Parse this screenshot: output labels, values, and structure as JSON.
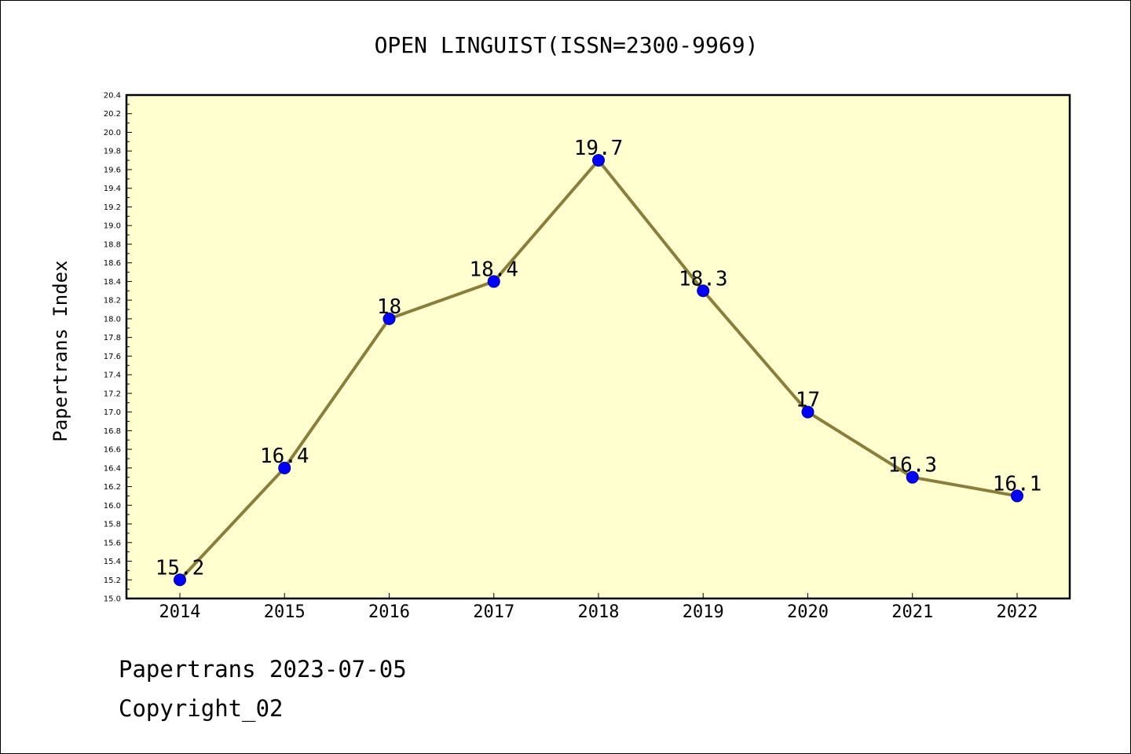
{
  "chart_data": {
    "type": "line",
    "title": "OPEN LINGUIST(ISSN=2300-9969)",
    "xlabel": "",
    "ylabel": "Papertrans Index",
    "ylim": [
      15.0,
      20.4
    ],
    "ytick_step": 0.2,
    "categories": [
      "2014",
      "2015",
      "2016",
      "2017",
      "2018",
      "2019",
      "2020",
      "2021",
      "2022"
    ],
    "series": [
      {
        "values": [
          15.2,
          16.4,
          18.0,
          18.4,
          19.7,
          18.3,
          17.0,
          16.3,
          16.1
        ],
        "data_labels": [
          "15.2",
          "16.4",
          "18",
          "18.4",
          "19.7",
          "18.3",
          "17",
          "16.3",
          "16.1"
        ]
      }
    ],
    "colors": {
      "plot_background": "#ffffd0",
      "line": "#8b7d3a",
      "marker": "#0000ff",
      "marker_edge": "#00008b"
    },
    "grid": false,
    "legend": "none"
  },
  "footer": {
    "source": "Papertrans 2023-07-05",
    "copyright": "Copyright_02"
  }
}
